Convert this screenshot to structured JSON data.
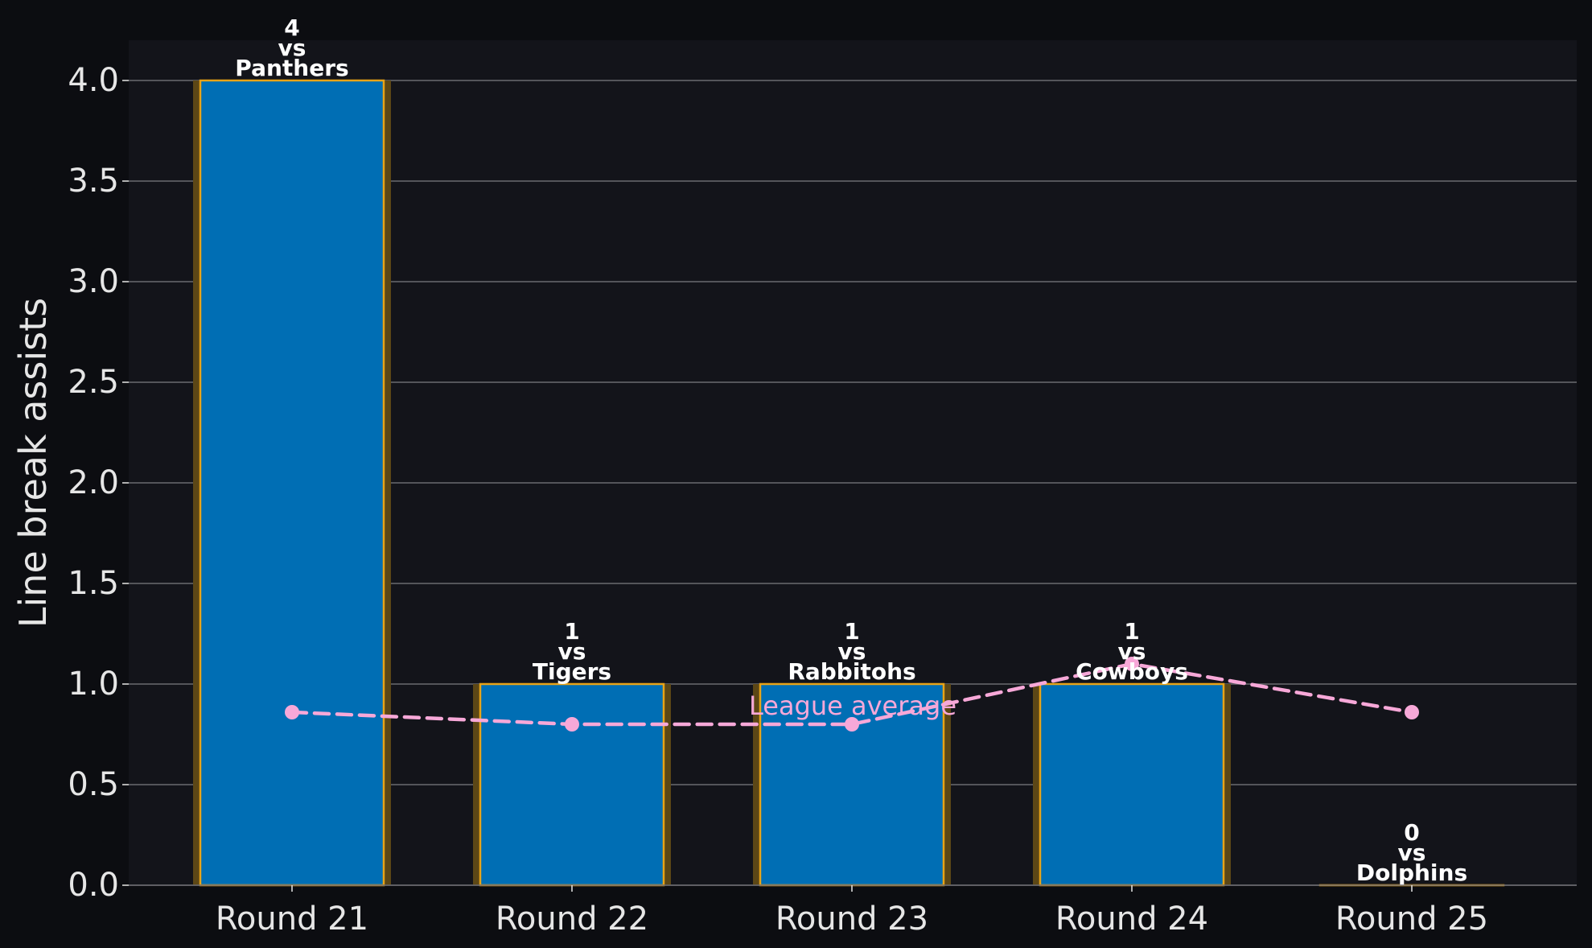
{
  "chart_data": {
    "type": "bar",
    "title": "",
    "xlabel": "",
    "ylabel": "Line break assists",
    "ylim": [
      0,
      4.2
    ],
    "yticks": [
      "0.0",
      "0.5",
      "1.0",
      "1.5",
      "2.0",
      "2.5",
      "3.0",
      "3.5",
      "4.0"
    ],
    "categories": [
      "Round 21",
      "Round 22",
      "Round 23",
      "Round 24",
      "Round 25"
    ],
    "values": [
      4,
      1,
      1,
      1,
      0
    ],
    "value_labels": [
      "4",
      "1",
      "1",
      "1",
      "0"
    ],
    "vs_text": "vs",
    "opponents": [
      "Panthers",
      "Tigers",
      "Rabbitohs",
      "Cowboys",
      "Dolphins"
    ],
    "grid": true,
    "average_line": {
      "label": "League average",
      "values": [
        0.86,
        0.8,
        0.8,
        1.1,
        0.86
      ],
      "style": "dashed"
    },
    "colors": {
      "bar_fill": "#006eb4",
      "bar_edge": "#e8a317",
      "bar_glow": "#5c4716",
      "average_line": "#f7a8d8",
      "plot_background": "#13141a",
      "figure_background": "#0c0d11",
      "grid": "#6b6b70",
      "text": "#e6e6e6",
      "annotation": "#ffffff"
    }
  }
}
